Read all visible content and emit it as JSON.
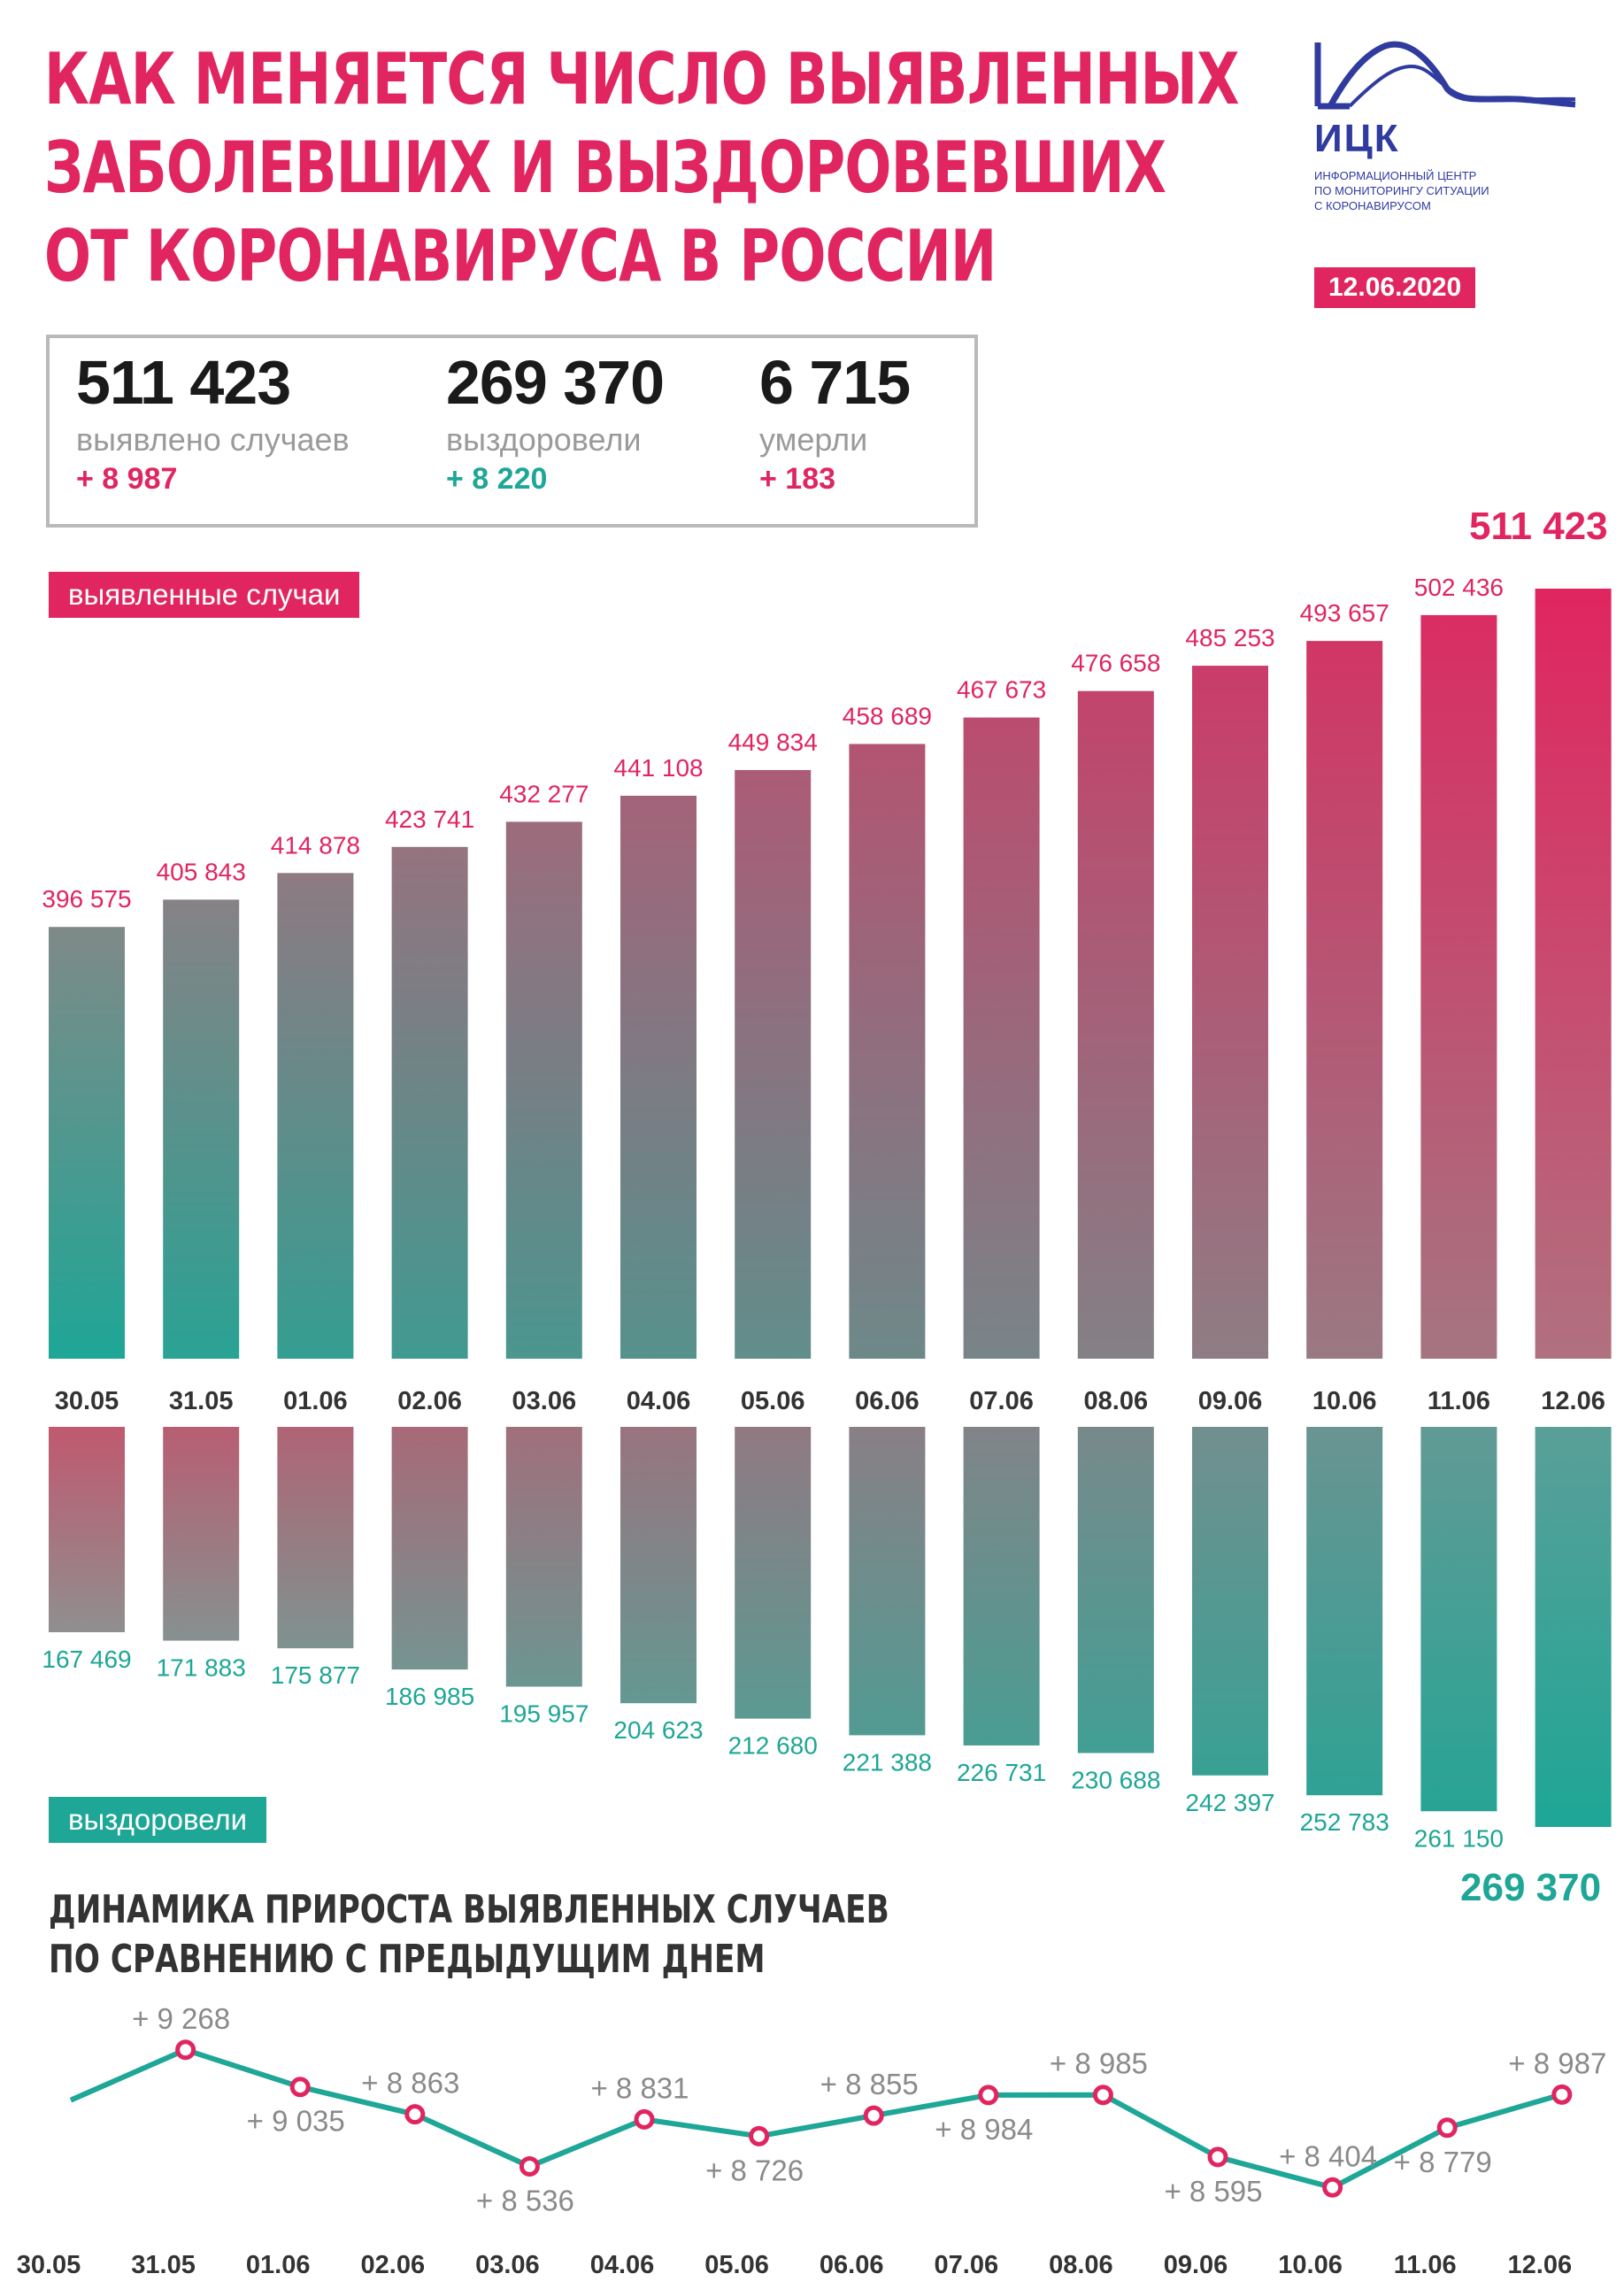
{
  "title": {
    "line1": "КАК МЕНЯЕТСЯ ЧИСЛО ВЫЯВЛЕННЫХ",
    "line2": "ЗАБОЛЕВШИХ И ВЫЗДОРОВЕВШИХ",
    "line3": "ОТ КОРОНАВИРУСА В РОССИИ"
  },
  "logo": {
    "name": "ИЦК",
    "sub1": "ИНФОРМАЦИОННЫЙ ЦЕНТР",
    "sub2": "ПО МОНИТОРИНГУ СИТУАЦИИ",
    "sub3": "С КОРОНАВИРУСОМ",
    "icon": "mountain-wave-icon"
  },
  "date": "12.06.2020",
  "stats": {
    "cases": {
      "value": "511 423",
      "label": "выявлено случаев",
      "delta": "+ 8 987"
    },
    "recovered": {
      "value": "269 370",
      "label": "выздоровели",
      "delta": "+ 8 220"
    },
    "deaths": {
      "value": "6 715",
      "label": "умерли",
      "delta": "+ 183"
    }
  },
  "colors": {
    "pink": "#e02560",
    "teal": "#1ea696",
    "gray": "#8a8a8a"
  },
  "chart_data": [
    {
      "type": "bar",
      "title": "выявленные случаи",
      "categories": [
        "30.05",
        "31.05",
        "01.06",
        "02.06",
        "03.06",
        "04.06",
        "05.06",
        "06.06",
        "07.06",
        "08.06",
        "09.06",
        "10.06",
        "11.06",
        "12.06"
      ],
      "values": [
        396575,
        405843,
        414878,
        423741,
        432277,
        441108,
        449834,
        458689,
        467673,
        476658,
        485253,
        493657,
        502436,
        511423
      ],
      "labels": [
        "396 575",
        "405 843",
        "414 878",
        "423 741",
        "432 277",
        "441 108",
        "449 834",
        "458 689",
        "467 673",
        "476 658",
        "485 253",
        "493 657",
        "502 436",
        "511 423"
      ]
    },
    {
      "type": "bar",
      "title": "выздоровели",
      "categories": [
        "30.05",
        "31.05",
        "01.06",
        "02.06",
        "03.06",
        "04.06",
        "05.06",
        "06.06",
        "07.06",
        "08.06",
        "09.06",
        "10.06",
        "11.06",
        "12.06"
      ],
      "values": [
        167469,
        171883,
        175877,
        186985,
        195957,
        204623,
        212680,
        221388,
        226731,
        230688,
        242397,
        252783,
        261150,
        269370
      ],
      "labels": [
        "167 469",
        "171 883",
        "175 877",
        "186 985",
        "195 957",
        "204 623",
        "212 680",
        "221 388",
        "226 731",
        "230 688",
        "242 397",
        "252 783",
        "261 150",
        "269 370"
      ]
    },
    {
      "type": "line",
      "title_line1": "ДИНАМИКА ПРИРОСТА ВЫЯВЛЕННЫХ СЛУЧАЕВ",
      "title_line2": "ПО СРАВНЕНИЮ С ПРЕДЫДУЩИМ ДНЕМ",
      "categories": [
        "30.05",
        "31.05",
        "01.06",
        "02.06",
        "03.06",
        "04.06",
        "05.06",
        "06.06",
        "07.06",
        "08.06",
        "09.06",
        "10.06",
        "11.06",
        "12.06"
      ],
      "values": [
        8952,
        9268,
        9035,
        8863,
        8536,
        8831,
        8726,
        8855,
        8984,
        8985,
        8595,
        8404,
        8779,
        8987
      ],
      "labels": [
        "",
        "+ 9 268",
        "+ 9 035",
        "+ 8 863",
        "+ 8 536",
        "+ 8 831",
        "+ 8 726",
        "+ 8 855",
        "+ 8 984",
        "+ 8 985",
        "+ 8 595",
        "+ 8 404",
        "+ 8 779",
        "+ 8 987"
      ],
      "label_pos": [
        "",
        "above",
        "below",
        "above",
        "below",
        "above",
        "below",
        "above",
        "below",
        "above",
        "below",
        "above",
        "below",
        "above"
      ]
    }
  ]
}
